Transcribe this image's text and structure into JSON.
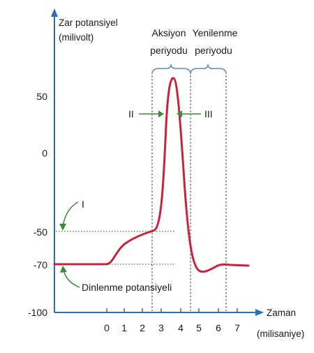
{
  "y_axis": {
    "title_line1": "Zar potansiyel",
    "title_line2": "(milivolt)",
    "ticks": [
      "50",
      "0",
      "-50",
      "-70",
      "-100"
    ]
  },
  "x_axis": {
    "title_line1": "Zaman",
    "title_line2": "(milisaniye)",
    "ticks": [
      "0",
      "1",
      "2",
      "3",
      "4",
      "5",
      "6",
      "7"
    ]
  },
  "phases": {
    "action_line1": "Aksiyon",
    "action_line2": "periyodu",
    "refractory_line1": "Yenilenme",
    "refractory_line2": "periyodu"
  },
  "annotations": {
    "threshold_marker": "I",
    "resting_label": "Dinlenme potansiyeli",
    "arrow_left": "II",
    "arrow_right": "III"
  },
  "colors": {
    "curve": "#c8223c",
    "axis": "#2c6fb5",
    "brace": "#5b87c9",
    "annotation_arrow": "#3d8a3d"
  }
}
